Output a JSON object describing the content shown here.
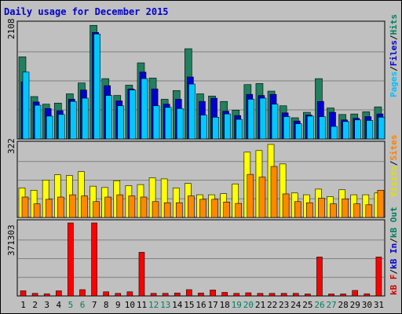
{
  "title": "Daily usage for December 2015",
  "chart_data": [
    {
      "type": "bar",
      "panel": "top",
      "max_label": "2108",
      "right_labels": [
        {
          "text": "Pages",
          "color": "#00c0ff"
        },
        {
          "text": "/",
          "color": "#000000"
        },
        {
          "text": "Files",
          "color": "#0000d0"
        },
        {
          "text": "/",
          "color": "#000000"
        },
        {
          "text": "Hits",
          "color": "#008060"
        }
      ],
      "categories": [
        "1",
        "2",
        "3",
        "4",
        "5",
        "6",
        "7",
        "8",
        "9",
        "10",
        "11",
        "12",
        "13",
        "14",
        "15",
        "16",
        "17",
        "18",
        "19",
        "20",
        "21",
        "22",
        "23",
        "24",
        "25",
        "26",
        "27",
        "28",
        "29",
        "30",
        "31"
      ],
      "weekend_days": [
        "5",
        "6",
        "12",
        "13",
        "19",
        "20",
        "26",
        "27"
      ],
      "ylim": [
        0,
        2108
      ],
      "series": [
        {
          "name": "Hits",
          "color": "#208060",
          "values": [
            1510,
            780,
            640,
            660,
            830,
            1030,
            2090,
            1110,
            800,
            990,
            1400,
            1120,
            730,
            890,
            1660,
            830,
            790,
            690,
            530,
            1000,
            1020,
            880,
            610,
            390,
            490,
            1110,
            570,
            450,
            460,
            500,
            590
          ]
        },
        {
          "name": "Files",
          "color": "#0000d0",
          "values": [
            1050,
            680,
            560,
            520,
            730,
            900,
            1960,
            980,
            700,
            920,
            1230,
            920,
            640,
            730,
            1140,
            690,
            750,
            510,
            430,
            820,
            800,
            820,
            480,
            330,
            440,
            690,
            490,
            350,
            380,
            410,
            460
          ]
        },
        {
          "name": "Pages",
          "color": "#00c8ff",
          "values": [
            1230,
            620,
            420,
            450,
            690,
            750,
            1930,
            800,
            610,
            900,
            1110,
            610,
            580,
            560,
            1010,
            440,
            400,
            460,
            360,
            730,
            750,
            640,
            410,
            280,
            420,
            410,
            230,
            320,
            350,
            340,
            400
          ]
        }
      ]
    },
    {
      "type": "bar",
      "panel": "middle",
      "max_label": "322",
      "right_labels": [
        {
          "text": "Visits",
          "color": "#e0e000"
        },
        {
          "text": "/",
          "color": "#000000"
        },
        {
          "text": "Sites",
          "color": "#ff8000"
        }
      ],
      "categories": [
        "1",
        "2",
        "3",
        "4",
        "5",
        "6",
        "7",
        "8",
        "9",
        "10",
        "11",
        "12",
        "13",
        "14",
        "15",
        "16",
        "17",
        "18",
        "19",
        "20",
        "21",
        "22",
        "23",
        "24",
        "25",
        "26",
        "27",
        "28",
        "29",
        "30",
        "31"
      ],
      "ylim": [
        0,
        322
      ],
      "series": [
        {
          "name": "Visits",
          "color": "#ffff00",
          "values": [
            130,
            120,
            165,
            188,
            185,
            202,
            138,
            132,
            162,
            140,
            145,
            175,
            170,
            130,
            150,
            100,
            100,
            105,
            148,
            288,
            295,
            322,
            236,
            108,
            100,
            125,
            92,
            122,
            100,
            100,
            108
          ]
        },
        {
          "name": "Sites",
          "color": "#ff8800",
          "values": [
            90,
            60,
            80,
            90,
            100,
            95,
            70,
            90,
            100,
            95,
            90,
            70,
            65,
            65,
            95,
            80,
            80,
            68,
            62,
            190,
            178,
            225,
            104,
            70,
            65,
            85,
            60,
            82,
            60,
            56,
            120
          ]
        }
      ]
    },
    {
      "type": "bar",
      "panel": "bottom",
      "max_label": "371303",
      "right_labels": [
        {
          "text": "kB F",
          "color": "#d00000"
        },
        {
          "text": "/",
          "color": "#000000"
        },
        {
          "text": "kB In",
          "color": "#0000d0"
        },
        {
          "text": "/",
          "color": "#000000"
        },
        {
          "text": "kB Out",
          "color": "#008060"
        }
      ],
      "categories": [
        "1",
        "2",
        "3",
        "4",
        "5",
        "6",
        "7",
        "8",
        "9",
        "10",
        "11",
        "12",
        "13",
        "14",
        "15",
        "16",
        "17",
        "18",
        "19",
        "20",
        "21",
        "22",
        "23",
        "24",
        "25",
        "26",
        "27",
        "28",
        "29",
        "30",
        "31"
      ],
      "ylim": [
        0,
        371303
      ],
      "series": [
        {
          "name": "kB F",
          "color": "#ff0000",
          "values": [
            26000,
            13000,
            11000,
            26000,
            371303,
            32000,
            371303,
            21000,
            13000,
            21000,
            222000,
            13000,
            13000,
            15000,
            32000,
            15000,
            30000,
            18000,
            13000,
            16000,
            13000,
            13000,
            13000,
            13000,
            10000,
            198000,
            10000,
            10000,
            28000,
            11000,
            198000
          ]
        }
      ]
    }
  ]
}
